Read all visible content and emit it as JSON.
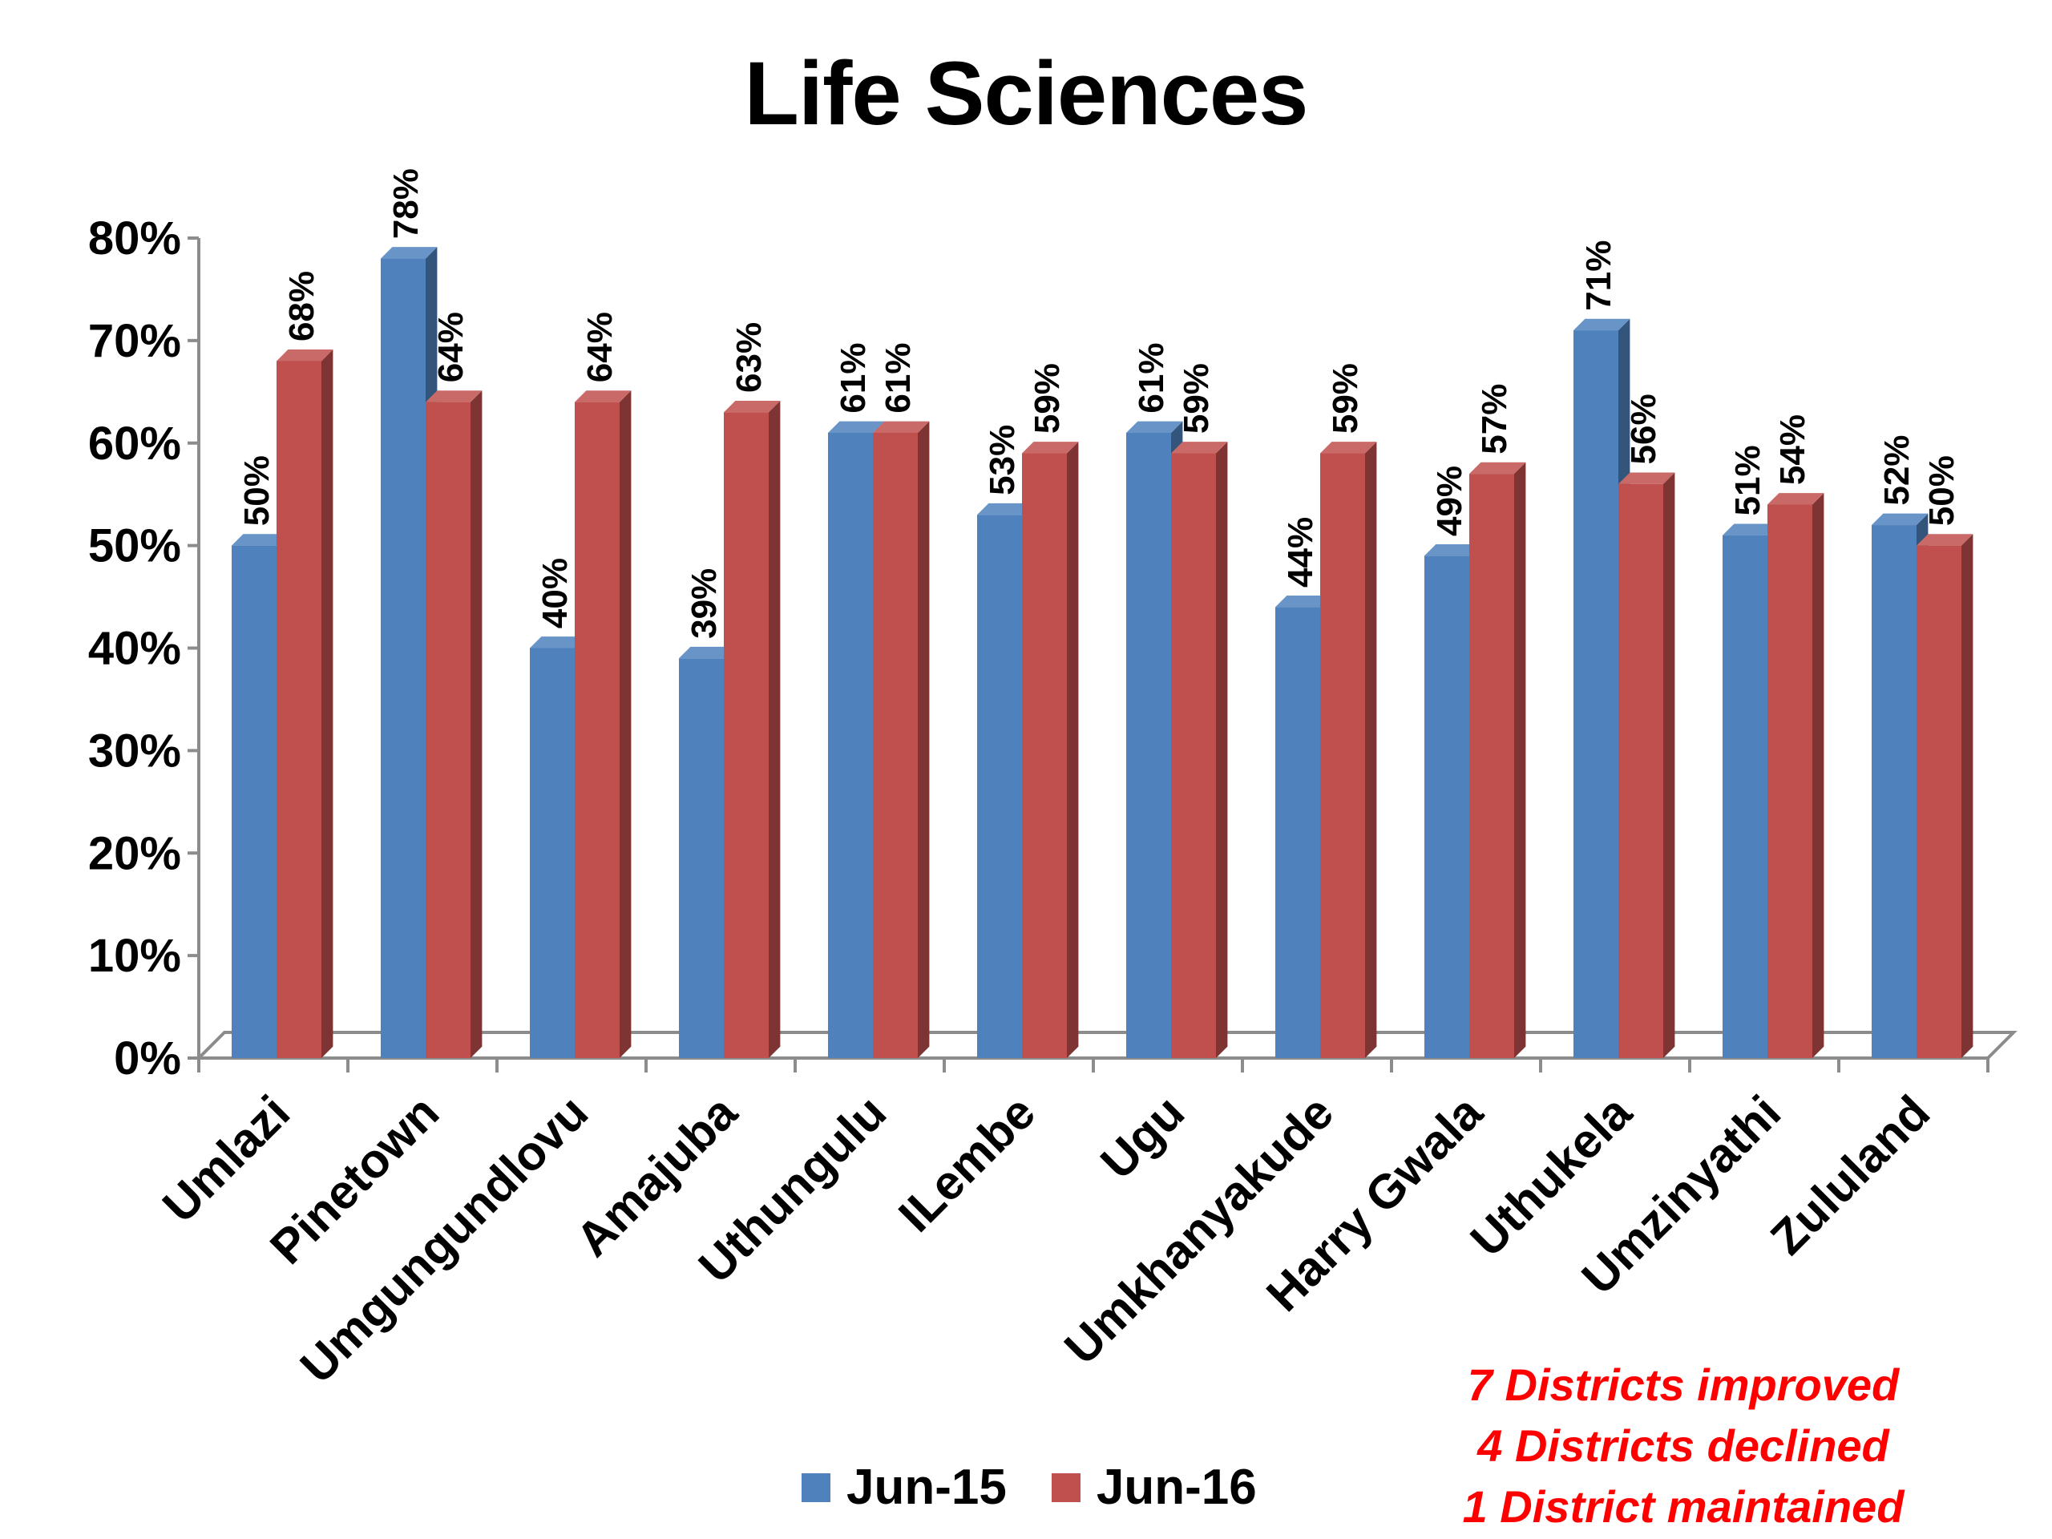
{
  "chart_data": {
    "type": "bar",
    "title": "Life Sciences",
    "categories": [
      "Umlazi",
      "Pinetown",
      "Umgungundlovu",
      "Amajuba",
      "Uthungulu",
      "ILembe",
      "Ugu",
      "Umkhanyakude",
      "Harry Gwala",
      "Uthukela",
      "Umzinyathi",
      "Zululand"
    ],
    "series": [
      {
        "name": "Jun-15",
        "color": "#4F81BD",
        "values": [
          50,
          78,
          40,
          39,
          61,
          53,
          61,
          44,
          49,
          71,
          51,
          52
        ]
      },
      {
        "name": "Jun-16",
        "color": "#C0504D",
        "values": [
          68,
          64,
          64,
          63,
          61,
          59,
          59,
          59,
          57,
          56,
          54,
          50
        ]
      }
    ],
    "value_labels": [
      [
        "50%",
        "78%",
        "40%",
        "39%",
        "61%",
        "53%",
        "61%",
        "44%",
        "49%",
        "71%",
        "51%",
        "52%"
      ],
      [
        "68%",
        "64%",
        "64%",
        "63%",
        "61%",
        "59%",
        "59%",
        "59%",
        "57%",
        "56%",
        "54%",
        "50%"
      ]
    ],
    "y_ticks": [
      "0%",
      "10%",
      "20%",
      "30%",
      "40%",
      "50%",
      "60%",
      "70%",
      "80%"
    ],
    "ylim": [
      0,
      80
    ],
    "grid": false,
    "legend_position": "bottom",
    "annotations": [
      "7 Districts improved",
      "4 Districts declined",
      "1 District maintained"
    ],
    "annotation_color": "#FF0000"
  }
}
